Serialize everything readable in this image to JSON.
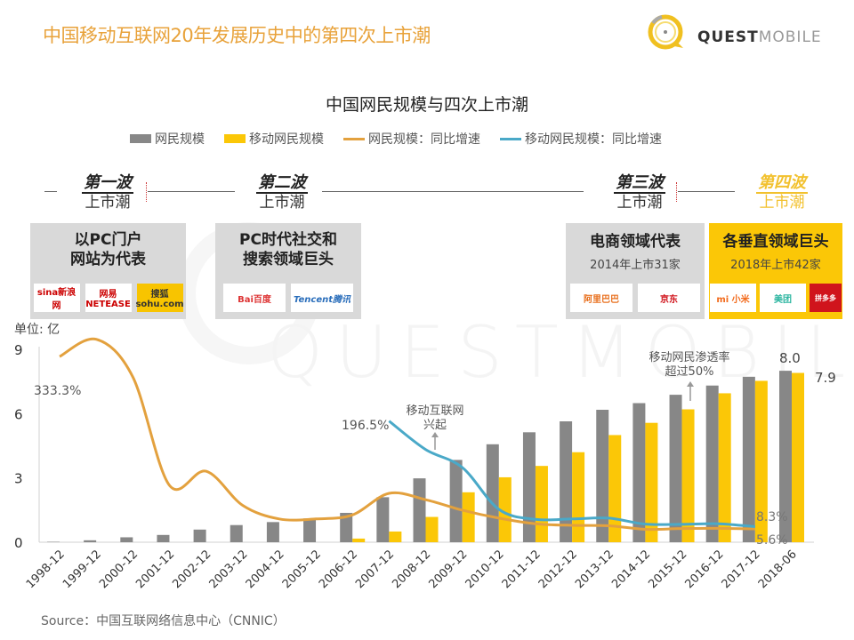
{
  "header": {
    "title": "中国移动互联网20年发展历史中的第四次上市潮",
    "logo_bold": "QUEST",
    "logo_light": "MOBILE"
  },
  "waves": [
    {
      "title": "第一波",
      "sub": "上市潮"
    },
    {
      "title": "第二波",
      "sub": "上市潮"
    },
    {
      "title": "第三波",
      "sub": "上市潮"
    },
    {
      "title": "第四波",
      "sub": "上市潮"
    }
  ],
  "cards": [
    {
      "title_line1": "以PC门户",
      "title_line2": "网站为代表",
      "sub": "",
      "logos": [
        "sina新浪网",
        "网易 NETEASE",
        "搜狐 sohu.com"
      ]
    },
    {
      "title_line1": "PC时代社交和",
      "title_line2": "搜索领域巨头",
      "sub": "",
      "logos": [
        "Bai百度",
        "Tencent腾讯"
      ]
    },
    {
      "title_line1": "电商领域代表",
      "title_line2": "",
      "sub": "2014年上市31家",
      "logos": [
        "阿里巴巴",
        "京东"
      ]
    },
    {
      "title_line1": "各垂直领域巨头",
      "title_line2": "",
      "sub": "2018年上市42家",
      "logos": [
        "mi 小米",
        "美团",
        "拼多多"
      ]
    }
  ],
  "watermark": "QUESTMOBILE",
  "unit_label": "单位: 亿",
  "source": "Source：中国互联网络信息中心（CNNIC）",
  "colors": {
    "title": "#e8a23a",
    "gray_bar": "#878787",
    "yellow_bar": "#fbc707",
    "orange_line": "#e3a13e",
    "blue_line": "#4aa9c8"
  },
  "chart_data": {
    "type": "bar",
    "title": "中国网民规模与四次上市潮",
    "xlabel": "",
    "ylabel": "单位: 亿",
    "ylim": [
      0,
      9
    ],
    "yticks": [
      0,
      3,
      6,
      9
    ],
    "grid": false,
    "legend_position": "top",
    "categories": [
      "1998-12",
      "1999-12",
      "2000-12",
      "2001-12",
      "2002-12",
      "2003-12",
      "2004-12",
      "2005-12",
      "2006-12",
      "2007-12",
      "2008-12",
      "2009-12",
      "2010-12",
      "2011-12",
      "2012-12",
      "2013-12",
      "2014-12",
      "2015-12",
      "2016-12",
      "2017-12",
      "2018-06"
    ],
    "series": [
      {
        "name": "网民规模",
        "type": "bar",
        "values": [
          0.02,
          0.09,
          0.23,
          0.34,
          0.59,
          0.8,
          0.94,
          1.11,
          1.37,
          2.1,
          2.98,
          3.84,
          4.57,
          5.13,
          5.64,
          6.18,
          6.49,
          6.88,
          7.31,
          7.72,
          8.0
        ]
      },
      {
        "name": "移动网民规模",
        "type": "bar",
        "values": [
          null,
          null,
          null,
          null,
          null,
          null,
          null,
          null,
          0.17,
          0.5,
          1.18,
          2.33,
          3.03,
          3.56,
          4.2,
          5.0,
          5.57,
          6.2,
          6.95,
          7.53,
          7.9
        ]
      },
      {
        "name": "网民规模：同比增速",
        "type": "line",
        "unit": "%",
        "values": [
          333.3,
          370,
          290,
          60,
          90,
          35,
          18,
          18,
          23,
          50,
          42,
          29,
          19,
          12,
          10,
          9.5,
          5,
          6,
          6.2,
          5.6,
          null
        ]
      },
      {
        "name": "移动网民规模：同比增速",
        "type": "line",
        "unit": "%",
        "values": [
          null,
          null,
          null,
          null,
          null,
          null,
          null,
          null,
          null,
          196.5,
          136,
          98,
          30,
          17.5,
          18,
          19,
          11.5,
          11.3,
          12,
          8.3,
          null
        ]
      }
    ],
    "data_labels": [
      {
        "text": "333.3%",
        "series": "网民规模：同比增速",
        "category": "1998-12"
      },
      {
        "text": "196.5%",
        "series": "移动网民规模：同比增速",
        "category": "2007-12"
      },
      {
        "text": "8.3%",
        "series": "移动网民规模：同比增速",
        "category": "2017-12"
      },
      {
        "text": "5.6%",
        "series": "网民规模：同比增速",
        "category": "2017-12"
      },
      {
        "text": "8.0",
        "series": "网民规模",
        "category": "2018-06"
      },
      {
        "text": "7.9",
        "series": "移动网民规模",
        "category": "2018-06"
      }
    ],
    "annotations": [
      {
        "text_line1": "移动互联网",
        "text_line2": "兴起",
        "category": "2009-12"
      },
      {
        "text_line1": "移动网民渗透率",
        "text_line2": "超过50%",
        "category": "2015-12"
      }
    ],
    "legend": [
      "网民规模",
      "移动网民规模",
      "网民规模：同比增速",
      "移动网民规模：同比增速"
    ]
  }
}
